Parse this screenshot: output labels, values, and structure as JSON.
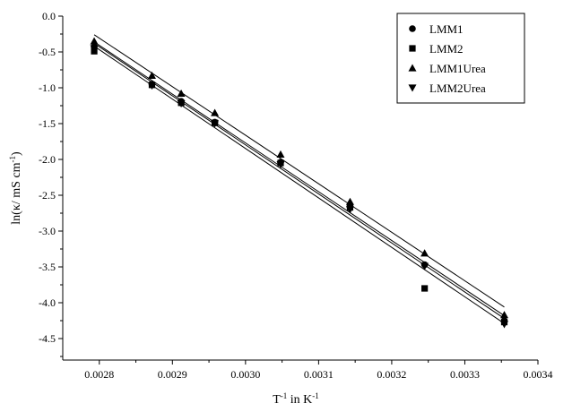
{
  "chart_data": {
    "type": "scatter",
    "xlabel": "T⁻¹ in K⁻¹",
    "xlabel_parts": [
      "T",
      "-1",
      " in K",
      "-1"
    ],
    "ylabel": "ln(κ/ mS cm⁻¹)",
    "ylabel_parts": [
      "ln(κ/ mS cm",
      "-1",
      ")"
    ],
    "xlim": [
      0.00275,
      0.0034
    ],
    "ylim": [
      -4.8,
      0.0
    ],
    "x_ticks": [
      0.0028,
      0.0029,
      0.003,
      0.0031,
      0.0032,
      0.0033,
      0.0034
    ],
    "x_tick_labels": [
      "0.0028",
      "0.0029",
      "0.0030",
      "0.0031",
      "0.0032",
      "0.0033",
      "0.0034"
    ],
    "y_ticks": [
      0.0,
      -0.5,
      -1.0,
      -1.5,
      -2.0,
      -2.5,
      -3.0,
      -3.5,
      -4.0,
      -4.5
    ],
    "y_tick_labels": [
      "0.0",
      "-0.5",
      "-1.0",
      "-1.5",
      "-2.0",
      "-2.5",
      "-3.0",
      "-3.5",
      "-4.0",
      "-4.5"
    ],
    "grid": false,
    "legend_position": "top-right",
    "series": [
      {
        "name": "LMM1",
        "marker": "circle",
        "x": [
          0.002793,
          0.002872,
          0.002912,
          0.002958,
          0.003048,
          0.003143,
          0.003245,
          0.003354
        ],
        "y": [
          -0.43,
          -0.95,
          -1.19,
          -1.48,
          -2.04,
          -2.65,
          -3.47,
          -4.25
        ]
      },
      {
        "name": "LMM2",
        "marker": "square",
        "x": [
          0.002793,
          0.002872,
          0.002912,
          0.002958,
          0.003048,
          0.003143,
          0.003245,
          0.003354
        ],
        "y": [
          -0.49,
          -0.96,
          -1.21,
          -1.49,
          -2.05,
          -2.67,
          -3.8,
          -4.27
        ]
      },
      {
        "name": "LMM1Urea",
        "marker": "triangle-up",
        "x": [
          0.002793,
          0.002872,
          0.002912,
          0.002958,
          0.003048,
          0.003143,
          0.003245,
          0.003354
        ],
        "y": [
          -0.35,
          -0.83,
          -1.08,
          -1.35,
          -1.93,
          -2.59,
          -3.31,
          -4.17
        ]
      },
      {
        "name": "LMM2Urea",
        "marker": "triangle-down",
        "x": [
          0.002793,
          0.002872,
          0.002912,
          0.002958,
          0.003048,
          0.003143,
          0.003245,
          0.003354
        ],
        "y": [
          -0.45,
          -0.97,
          -1.22,
          -1.5,
          -2.07,
          -2.7,
          -3.49,
          -4.3
        ]
      }
    ],
    "fit_lines": [
      {
        "x": [
          0.002793,
          0.003354
        ],
        "y": [
          -0.26,
          -4.06
        ]
      },
      {
        "x": [
          0.002793,
          0.003354
        ],
        "y": [
          -0.36,
          -4.18
        ]
      },
      {
        "x": [
          0.002793,
          0.003354
        ],
        "y": [
          -0.38,
          -4.22
        ]
      },
      {
        "x": [
          0.002793,
          0.003354
        ],
        "y": [
          -0.42,
          -4.29
        ]
      }
    ],
    "colors": {
      "ink": "#000000",
      "background": "#ffffff"
    }
  }
}
